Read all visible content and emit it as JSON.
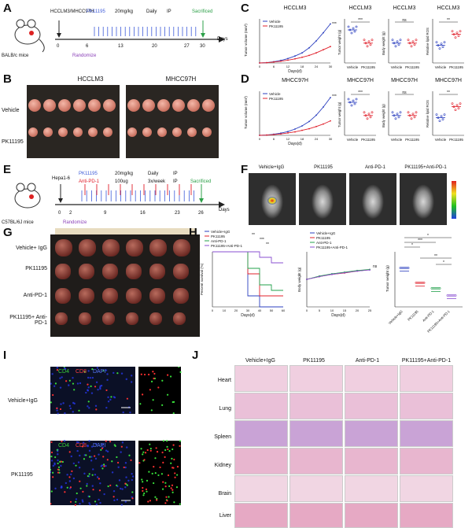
{
  "panels": {
    "A": {
      "letter": "A",
      "mouse_label": "BALB/c mice",
      "cells": "HCCLM3/MHCC97H",
      "drug": "PK11195",
      "dose": "20mg/kg",
      "freq": "Daily",
      "route": "IP",
      "randomize": "Randomize",
      "sacrificed": "Sacrificed",
      "days_label": "Days",
      "ticks": [
        "0",
        "6",
        "13",
        "20",
        "27",
        "30"
      ]
    },
    "B": {
      "letter": "B",
      "col1": "HCCLM3",
      "col2": "MHCC97H",
      "row1": "Vehicle",
      "row2": "PK11195"
    },
    "C": {
      "letter": "C",
      "titles": [
        "HCCLM3",
        "HCCLM3",
        "HCCLM3",
        "HCCLM3"
      ],
      "legend": [
        "Vehicle",
        "PK11195"
      ],
      "ylabels": [
        "Tumor volume (mm³)",
        "Tumor weight (g)",
        "Body weight (g)",
        "Relative lipid ROS"
      ],
      "xlabel": "Days(d)",
      "xticks": [
        "0",
        "3",
        "6",
        "9",
        "12",
        "15",
        "18",
        "21",
        "24",
        "27",
        "30"
      ],
      "sig": [
        "***",
        "***",
        "ns",
        "**"
      ],
      "groups": [
        "Vehicle",
        "PK11195"
      ]
    },
    "D": {
      "letter": "D",
      "titles": [
        "MHCC97H",
        "MHCC97H",
        "MHCC97H",
        "MHCC97H"
      ],
      "legend": [
        "Vehicle",
        "PK11195"
      ],
      "ylabels": [
        "Tumor volume (mm³)",
        "Tumor weight (g)",
        "Body weight (g)",
        "Relative lipid ROS"
      ],
      "xlabel": "Days(d)",
      "xticks": [
        "0",
        "3",
        "6",
        "9",
        "12",
        "15",
        "18",
        "21",
        "24",
        "27",
        "30"
      ],
      "sig": [
        "***",
        "***",
        "ns",
        "**"
      ],
      "groups": [
        "Vehicle",
        "PK11195"
      ]
    },
    "E": {
      "letter": "E",
      "mouse_label": "C57BL/6J mice",
      "cells": "Hepa1-6",
      "drug1": "PK11195",
      "dose1": "20mg/kg",
      "freq1": "Daily",
      "route1": "IP",
      "drug2": "Anti-PD-1",
      "dose2": "100ug",
      "freq2": "3x/week",
      "route2": "IP",
      "randomize": "Randomize",
      "sacrificed": "Sacrificed",
      "days_label": "Days",
      "ticks": [
        "0",
        "2",
        "9",
        "16",
        "23",
        "26"
      ]
    },
    "F": {
      "letter": "F",
      "labels": [
        "Vehicle+IgG",
        "PK11195",
        "Anti-PD-1",
        "PK11195+Anti-PD-1"
      ]
    },
    "G": {
      "letter": "G",
      "rows": [
        "Vehicle+ IgG",
        "PK11195",
        "Anti-PD-1",
        "PK11195+ Anti-PD-1"
      ]
    },
    "H": {
      "letter": "H",
      "legend": [
        "Vehicle+IgG",
        "PK11195",
        "Anti-PD-1",
        "PK11195+Anti-PD-1"
      ],
      "ylabels": [
        "Percent survival (%)",
        "Body weight (g)",
        "Tumor weight (g)"
      ],
      "xlabel": "Days(d)",
      "surv_xticks": [
        "0",
        "10",
        "20",
        "30",
        "40",
        "50",
        "60"
      ],
      "bw_xticks": [
        "0",
        "5",
        "10",
        "15",
        "20",
        "25"
      ],
      "groups": [
        "Vehicle+IgG",
        "PK11195",
        "Anti-PD-1",
        "PK11195+Anti-PD-1"
      ],
      "sig": [
        "**",
        "***",
        "**",
        "*",
        "***",
        "**",
        "*",
        "ns"
      ]
    },
    "I": {
      "letter": "I",
      "legend": [
        "CD4",
        "CD8",
        "DAPI"
      ],
      "rows": [
        "Vehicle+IgG",
        "PK11195"
      ]
    },
    "J": {
      "letter": "J",
      "cols": [
        "Vehicle+IgG",
        "PK11195",
        "Anti-PD-1",
        "PK11195+Anti-PD-1"
      ],
      "rows": [
        "Heart",
        "Lung",
        "Spleen",
        "Kidney",
        "Brain",
        "Liver"
      ]
    }
  },
  "chart_data": [
    {
      "type": "line",
      "title": "HCCLM3",
      "xlabel": "Days(d)",
      "ylabel": "Tumor volume (mm³)",
      "x": [
        0,
        3,
        6,
        9,
        12,
        15,
        18,
        21,
        24,
        27,
        30
      ],
      "series": [
        {
          "name": "Vehicle",
          "values": [
            0,
            5,
            20,
            40,
            70,
            110,
            160,
            240,
            350,
            480,
            620
          ]
        },
        {
          "name": "PK11195",
          "values": [
            0,
            4,
            15,
            28,
            45,
            65,
            90,
            120,
            160,
            210,
            260
          ]
        }
      ],
      "colors": [
        "#2b3fbf",
        "#e0202b"
      ]
    },
    {
      "type": "line",
      "title": "MHCC97H",
      "xlabel": "Days(d)",
      "ylabel": "Tumor volume (mm³)",
      "x": [
        0,
        3,
        6,
        9,
        12,
        15,
        18,
        21,
        24,
        27,
        30
      ],
      "series": [
        {
          "name": "Vehicle",
          "values": [
            0,
            5,
            18,
            35,
            60,
            100,
            150,
            220,
            320,
            450,
            600
          ]
        },
        {
          "name": "PK11195",
          "values": [
            0,
            4,
            12,
            22,
            38,
            55,
            80,
            105,
            140,
            180,
            230
          ]
        }
      ],
      "colors": [
        "#2b3fbf",
        "#e0202b"
      ]
    },
    {
      "type": "line",
      "xlabel": "Days(d)",
      "ylabel": "Percent survival (%)",
      "x": [
        0,
        10,
        20,
        30,
        40,
        50,
        60
      ],
      "series": [
        {
          "name": "Vehicle+IgG",
          "values": [
            100,
            100,
            100,
            20,
            0,
            0,
            0
          ]
        },
        {
          "name": "PK11195",
          "values": [
            100,
            100,
            100,
            60,
            20,
            20,
            20
          ]
        },
        {
          "name": "Anti-PD-1",
          "values": [
            100,
            100,
            100,
            70,
            40,
            30,
            30
          ]
        },
        {
          "name": "PK11195+Anti-PD-1",
          "values": [
            100,
            100,
            100,
            100,
            90,
            80,
            80
          ]
        }
      ],
      "colors": [
        "#2b3fbf",
        "#e0202b",
        "#22a04b",
        "#8a4fd1"
      ]
    },
    {
      "type": "line",
      "xlabel": "Days(d)",
      "ylabel": "Body weight (g)",
      "x": [
        0,
        5,
        10,
        15,
        20,
        25
      ],
      "series": [
        {
          "name": "Vehicle+IgG",
          "values": [
            20,
            21,
            22,
            22.5,
            23,
            23.5
          ]
        },
        {
          "name": "PK11195",
          "values": [
            20,
            21,
            21.8,
            22.3,
            23,
            23.5
          ]
        },
        {
          "name": "Anti-PD-1",
          "values": [
            20,
            21.2,
            22,
            22.6,
            23.2,
            23.6
          ]
        },
        {
          "name": "PK11195+Anti-PD-1",
          "values": [
            20,
            21,
            21.8,
            22.4,
            23,
            23.4
          ]
        }
      ],
      "colors": [
        "#2b3fbf",
        "#e0202b",
        "#22a04b",
        "#8a4fd1"
      ]
    }
  ]
}
